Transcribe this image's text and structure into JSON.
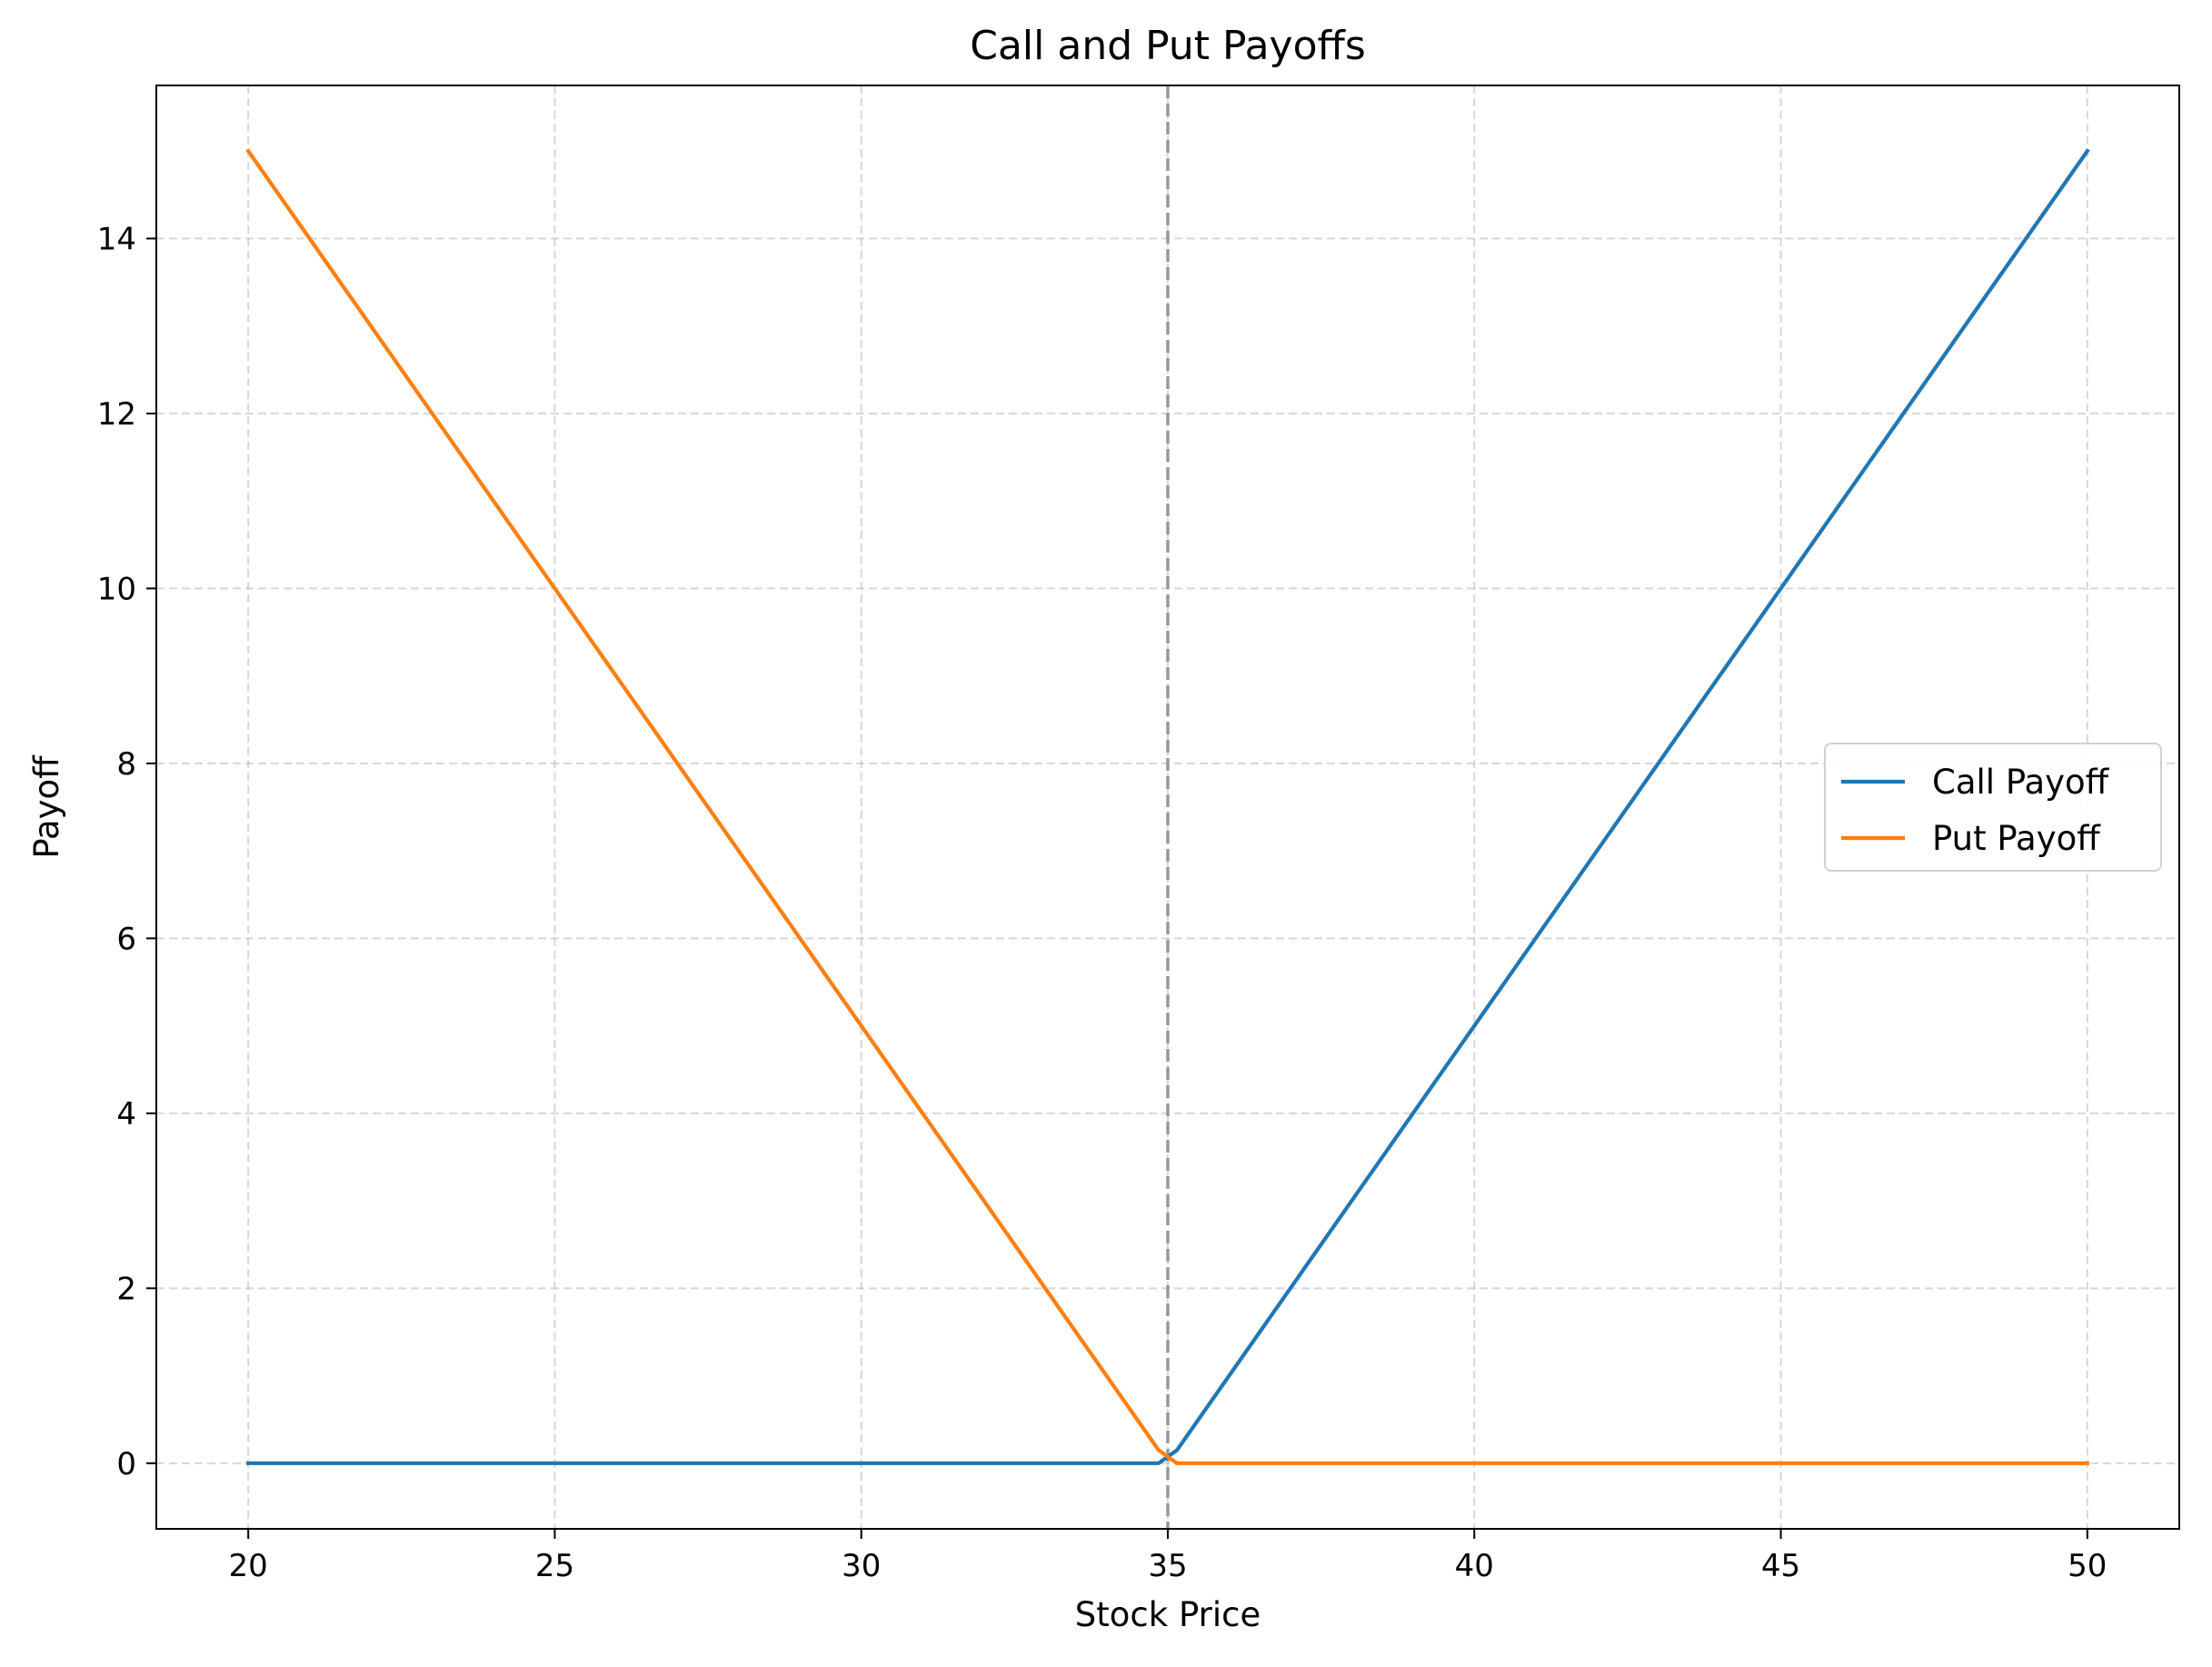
{
  "chart_data": {
    "type": "line",
    "title": "Call and Put Payoffs",
    "xlabel": "Stock Price",
    "ylabel": "Payoff",
    "xlim": [
      18.5,
      51.5
    ],
    "ylim": [
      -0.75,
      15.75
    ],
    "x_ticks": [
      20,
      25,
      30,
      35,
      40,
      45,
      50
    ],
    "y_ticks": [
      0,
      2,
      4,
      6,
      8,
      10,
      12,
      14
    ],
    "grid": true,
    "legend_position": "center-right",
    "strike_marker": {
      "x": 35,
      "style": "dashed",
      "color": "#999999"
    },
    "series": [
      {
        "name": "Call Payoff",
        "color": "#1f77b4",
        "x": [
          20,
          34.85,
          35.15,
          50
        ],
        "y": [
          0,
          0,
          0.15,
          15
        ]
      },
      {
        "name": "Put Payoff",
        "color": "#ff7f0e",
        "x": [
          20,
          34.85,
          35.15,
          50
        ],
        "y": [
          15,
          0.15,
          0,
          0
        ]
      }
    ]
  }
}
